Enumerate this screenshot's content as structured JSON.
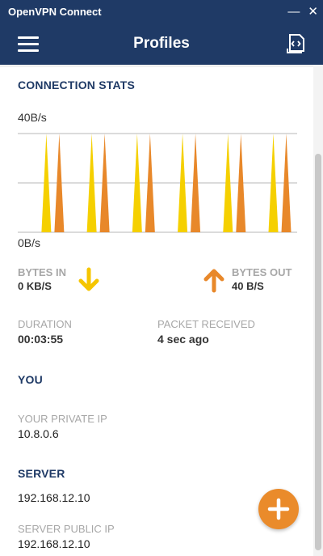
{
  "window": {
    "title": "OpenVPN Connect",
    "minimize": "—",
    "close": "✕"
  },
  "header": {
    "title": "Profiles",
    "menu_icon": "hamburger-menu-icon",
    "import_icon": "import-profile-icon"
  },
  "connection_stats": {
    "title": "CONNECTION STATS",
    "chart_data": {
      "type": "area",
      "ylim_labels": [
        "0B/s",
        "40B/s"
      ],
      "ylim": [
        0,
        40
      ],
      "series": [
        {
          "name": "BYTES IN",
          "color": "#f5d000",
          "values": [
            0,
            40,
            0,
            40,
            0,
            40,
            0,
            40,
            0,
            40,
            0,
            40
          ]
        },
        {
          "name": "BYTES OUT",
          "color": "#e8882a",
          "values": [
            0,
            40,
            0,
            40,
            0,
            40,
            0,
            40,
            0,
            40,
            0,
            40
          ]
        }
      ],
      "grid": true
    },
    "bytes_in": {
      "label": "BYTES IN",
      "value": "0 KB/S",
      "color": "#f5d000"
    },
    "bytes_out": {
      "label": "BYTES OUT",
      "value": "40 B/S",
      "color": "#e8882a"
    },
    "duration": {
      "label": "DURATION",
      "value": "00:03:55"
    },
    "packet_received": {
      "label": "PACKET RECEIVED",
      "value": "4 sec ago"
    }
  },
  "you": {
    "title": "YOU",
    "private_ip_label": "YOUR PRIVATE IP",
    "private_ip": "10.8.0.6"
  },
  "server": {
    "title": "SERVER",
    "address": "192.168.12.10",
    "public_ip_label": "SERVER PUBLIC IP",
    "public_ip": "192.168.12.10"
  },
  "fab": {
    "icon": "plus-icon"
  }
}
